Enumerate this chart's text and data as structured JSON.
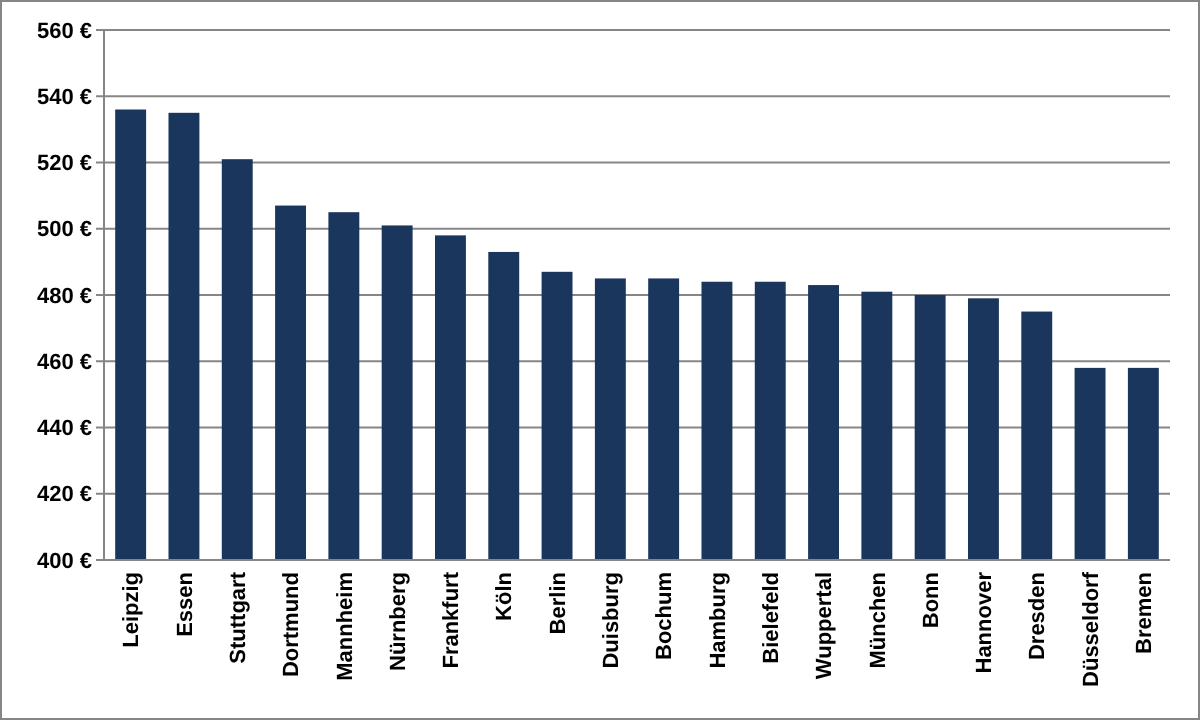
{
  "chart_data": {
    "type": "bar",
    "categories": [
      "Leipzig",
      "Essen",
      "Stuttgart",
      "Dortmund",
      "Mannheim",
      "Nürnberg",
      "Frankfurt",
      "Köln",
      "Berlin",
      "Duisburg",
      "Bochum",
      "Hamburg",
      "Bielefeld",
      "Wuppertal",
      "München",
      "Bonn",
      "Hannover",
      "Dresden",
      "Düsseldorf",
      "Bremen"
    ],
    "values": [
      536,
      535,
      521,
      507,
      505,
      501,
      498,
      493,
      487,
      485,
      485,
      484,
      484,
      483,
      481,
      480,
      479,
      475,
      458,
      458
    ],
    "color": "#1b365d",
    "ylim": [
      400,
      560
    ],
    "yticks": [
      {
        "value": 400,
        "label": "400 €"
      },
      {
        "value": 420,
        "label": "420 €"
      },
      {
        "value": 440,
        "label": "440 €"
      },
      {
        "value": 460,
        "label": "460 €"
      },
      {
        "value": 480,
        "label": "480 €"
      },
      {
        "value": 500,
        "label": "500 €"
      },
      {
        "value": 520,
        "label": "520 €"
      },
      {
        "value": 540,
        "label": "540 €"
      },
      {
        "value": 560,
        "label": "560 €"
      }
    ],
    "grid": "y"
  }
}
